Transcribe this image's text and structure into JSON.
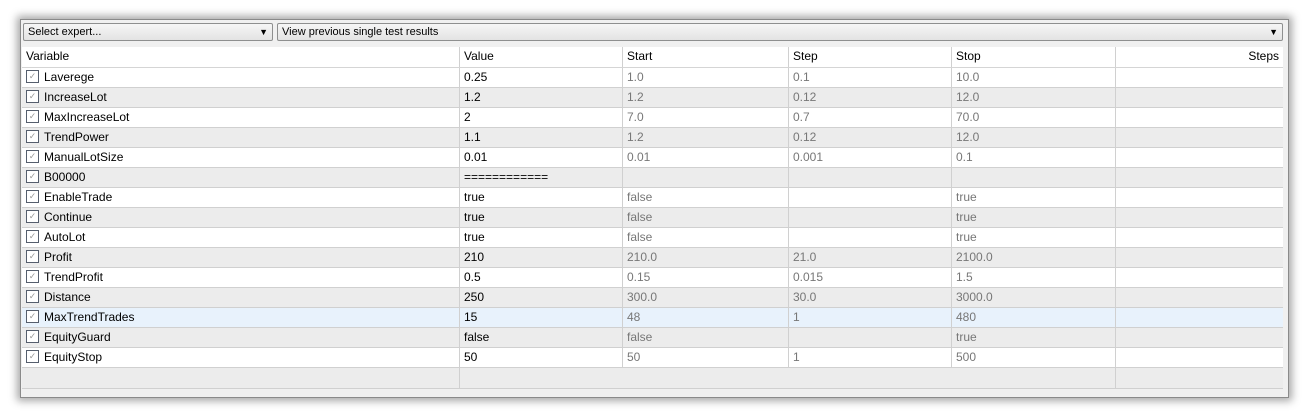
{
  "toolbar": {
    "expert_select": "Select expert...",
    "results_select": "View previous single test results"
  },
  "columns": [
    "Variable",
    "Value",
    "Start",
    "Step",
    "Stop",
    "Steps"
  ],
  "rows": [
    {
      "name": "Laverege",
      "value": "0.25",
      "start": "1.0",
      "step": "0.1",
      "stop": "10.0",
      "steps": "",
      "checked": true
    },
    {
      "name": "IncreaseLot",
      "value": "1.2",
      "start": "1.2",
      "step": "0.12",
      "stop": "12.0",
      "steps": "",
      "checked": true
    },
    {
      "name": "MaxIncreaseLot",
      "value": "2",
      "start": "7.0",
      "step": "0.7",
      "stop": "70.0",
      "steps": "",
      "checked": true
    },
    {
      "name": "TrendPower",
      "value": "1.1",
      "start": "1.2",
      "step": "0.12",
      "stop": "12.0",
      "steps": "",
      "checked": true
    },
    {
      "name": "ManualLotSize",
      "value": "0.01",
      "start": "0.01",
      "step": "0.001",
      "stop": "0.1",
      "steps": "",
      "checked": true
    },
    {
      "name": "B00000",
      "value": "============",
      "start": "",
      "step": "",
      "stop": "",
      "steps": "",
      "checked": true
    },
    {
      "name": "EnableTrade",
      "value": "true",
      "start": "false",
      "step": "",
      "stop": "true",
      "steps": "",
      "checked": true
    },
    {
      "name": "Continue",
      "value": "true",
      "start": "false",
      "step": "",
      "stop": "true",
      "steps": "",
      "checked": true
    },
    {
      "name": "AutoLot",
      "value": "true",
      "start": "false",
      "step": "",
      "stop": "true",
      "steps": "",
      "checked": true
    },
    {
      "name": "Profit",
      "value": "210",
      "start": "210.0",
      "step": "21.0",
      "stop": "2100.0",
      "steps": "",
      "checked": true
    },
    {
      "name": "TrendProfit",
      "value": "0.5",
      "start": "0.15",
      "step": "0.015",
      "stop": "1.5",
      "steps": "",
      "checked": true
    },
    {
      "name": "Distance",
      "value": "250",
      "start": "300.0",
      "step": "30.0",
      "stop": "3000.0",
      "steps": "",
      "checked": true
    },
    {
      "name": "MaxTrendTrades",
      "value": "15",
      "start": "48",
      "step": "1",
      "stop": "480",
      "steps": "",
      "checked": true,
      "selected": true
    },
    {
      "name": "EquityGuard",
      "value": "false",
      "start": "false",
      "step": "",
      "stop": "true",
      "steps": "",
      "checked": true
    },
    {
      "name": "EquityStop",
      "value": "50",
      "start": "50",
      "step": "1",
      "stop": "500",
      "steps": "",
      "checked": true
    }
  ]
}
